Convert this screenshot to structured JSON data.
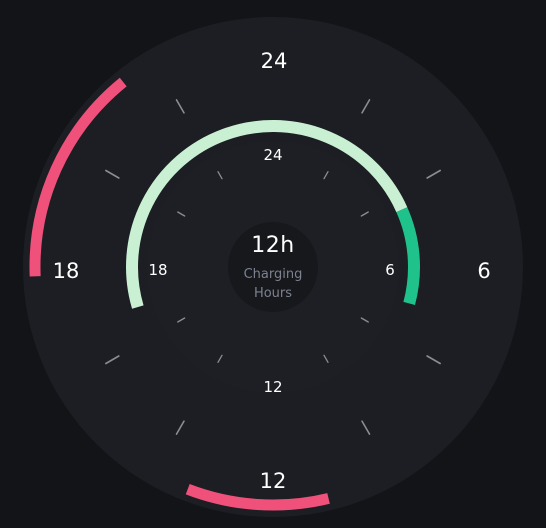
{
  "colors": {
    "background": "#131418",
    "outer_track": "#1c1e23",
    "inner_face": "#1d1f25",
    "center_disc": "#17181c",
    "tick": "#8a8d96",
    "outer_arc": "#f0517a",
    "inner_arc": "#c9f0d3",
    "inner_arc_accent": "#1fc28a"
  },
  "outer_dial": {
    "labels": [
      "24",
      "6",
      "12",
      "18"
    ],
    "arcs": [
      {
        "name": "outer-arc-bottom",
        "start_hour": 11.1,
        "end_hour": 13.4
      },
      {
        "name": "outer-arc-left",
        "start_hour": 17.85,
        "end_hour": 21.4
      }
    ]
  },
  "inner_dial": {
    "labels": [
      "24",
      "6",
      "12",
      "18"
    ],
    "arcs": [
      {
        "name": "inner-arc-light",
        "start_hour": 16.9,
        "end_hour": 4.4
      },
      {
        "name": "inner-arc-green",
        "start_hour": 4.4,
        "end_hour": 7.0
      }
    ]
  },
  "center": {
    "value": "12h",
    "label_line1": "Charging",
    "label_line2": "Hours"
  }
}
